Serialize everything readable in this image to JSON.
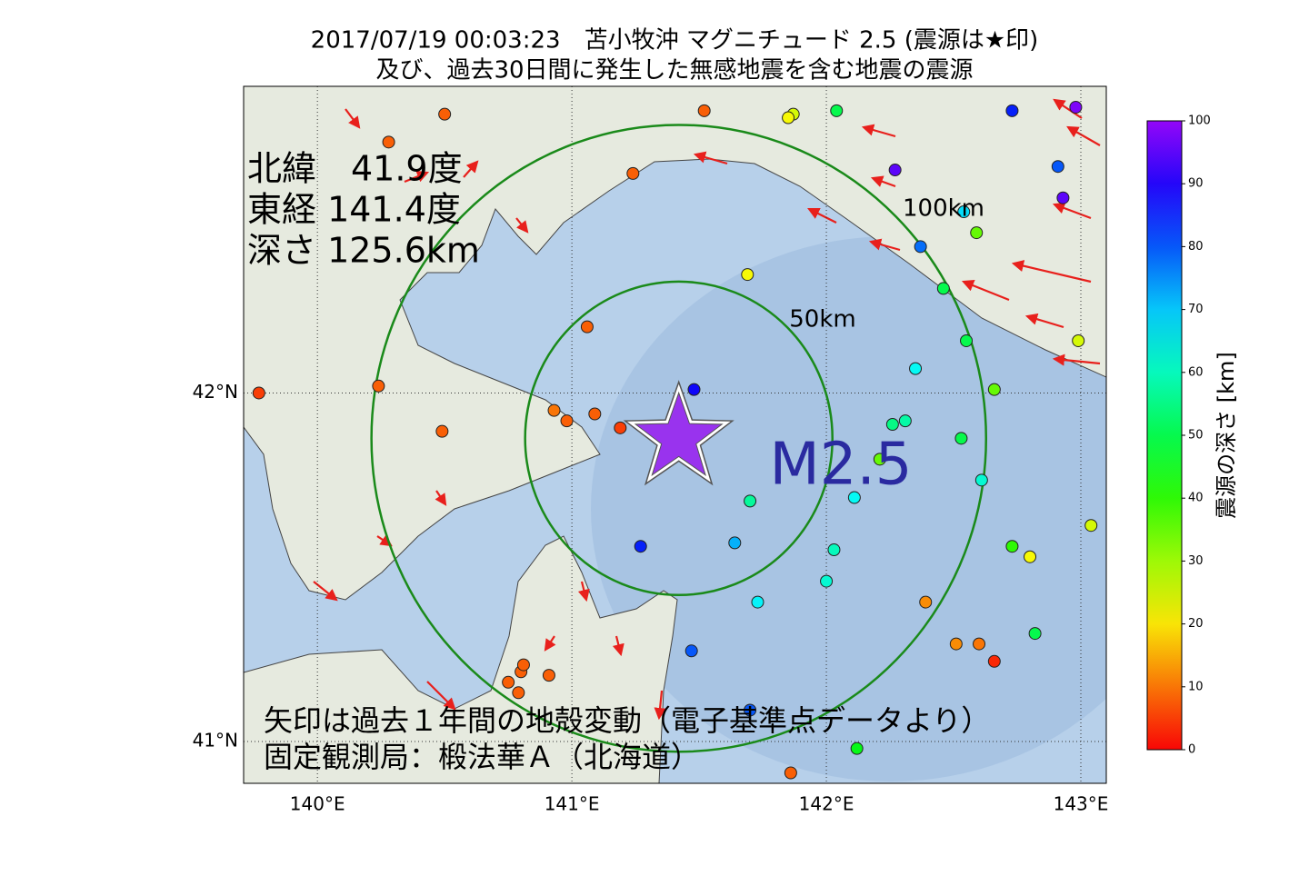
{
  "title": [
    "2017/07/19 00:03:23　苫小牧沖 マグニチュード 2.5 (震源は★印)",
    "及び、過去30日間に発生した無感地震を含む地震の震源"
  ],
  "info": [
    "北緯　41.9度",
    "東経 141.4度",
    "深さ 125.6km"
  ],
  "magnitude_label": "M2.5",
  "notes": [
    "矢印は過去１年間の地殻変動（電子基準点データより）",
    "固定観測局：椴法華Ａ（北海道）"
  ],
  "map": {
    "lonlim": [
      139.71,
      143.1
    ],
    "latlim": [
      40.88,
      42.88
    ],
    "lonticks": [
      {
        "value": 140,
        "label": "140°E"
      },
      {
        "value": 141,
        "label": "141°E"
      },
      {
        "value": 142,
        "label": "142°E"
      },
      {
        "value": 143,
        "label": "143°E"
      }
    ],
    "latticks": [
      {
        "value": 41,
        "label": "41°N"
      },
      {
        "value": 42,
        "label": "42°N"
      }
    ],
    "epicenter": {
      "lon": 141.42,
      "lat": 41.87
    },
    "rings": [
      {
        "label": "50km",
        "radius_km": 50
      },
      {
        "label": "100km",
        "radius_km": 100
      }
    ],
    "quakes": [
      {
        "lon": 141.48,
        "lat": 42.01,
        "depth": 88
      },
      {
        "lon": 141.27,
        "lat": 41.56,
        "depth": 85
      },
      {
        "lon": 141.64,
        "lat": 41.57,
        "depth": 72
      },
      {
        "lon": 141.73,
        "lat": 41.4,
        "depth": 66
      },
      {
        "lon": 141.47,
        "lat": 41.26,
        "depth": 80
      },
      {
        "lon": 141.7,
        "lat": 41.69,
        "depth": 57
      },
      {
        "lon": 141.06,
        "lat": 42.19,
        "depth": 8
      },
      {
        "lon": 141.09,
        "lat": 41.94,
        "depth": 8
      },
      {
        "lon": 140.93,
        "lat": 41.95,
        "depth": 10
      },
      {
        "lon": 140.98,
        "lat": 41.92,
        "depth": 8
      },
      {
        "lon": 141.19,
        "lat": 41.9,
        "depth": 5
      },
      {
        "lon": 141.69,
        "lat": 42.34,
        "depth": 22
      },
      {
        "lon": 142.21,
        "lat": 41.81,
        "depth": 35
      },
      {
        "lon": 142.26,
        "lat": 41.91,
        "depth": 55
      },
      {
        "lon": 142.31,
        "lat": 41.92,
        "depth": 58
      },
      {
        "lon": 142.11,
        "lat": 41.7,
        "depth": 65
      },
      {
        "lon": 142.03,
        "lat": 41.55,
        "depth": 60
      },
      {
        "lon": 142.0,
        "lat": 41.46,
        "depth": 62
      },
      {
        "lon": 142.39,
        "lat": 41.4,
        "depth": 12
      },
      {
        "lon": 142.35,
        "lat": 42.07,
        "depth": 65
      },
      {
        "lon": 142.53,
        "lat": 41.87,
        "depth": 50
      },
      {
        "lon": 142.61,
        "lat": 41.75,
        "depth": 62
      },
      {
        "lon": 142.66,
        "lat": 42.01,
        "depth": 35
      },
      {
        "lon": 142.8,
        "lat": 41.53,
        "depth": 22
      },
      {
        "lon": 142.73,
        "lat": 41.56,
        "depth": 40
      },
      {
        "lon": 142.66,
        "lat": 41.23,
        "depth": 3
      },
      {
        "lon": 142.6,
        "lat": 41.28,
        "depth": 10
      },
      {
        "lon": 142.51,
        "lat": 41.28,
        "depth": 12
      },
      {
        "lon": 142.37,
        "lat": 42.42,
        "depth": 78
      },
      {
        "lon": 142.27,
        "lat": 42.64,
        "depth": 95
      },
      {
        "lon": 142.54,
        "lat": 42.52,
        "depth": 68
      },
      {
        "lon": 142.59,
        "lat": 42.46,
        "depth": 35
      },
      {
        "lon": 142.46,
        "lat": 42.3,
        "depth": 50
      },
      {
        "lon": 142.55,
        "lat": 42.15,
        "depth": 50
      },
      {
        "lon": 142.73,
        "lat": 42.81,
        "depth": 85
      },
      {
        "lon": 142.91,
        "lat": 42.65,
        "depth": 80
      },
      {
        "lon": 142.93,
        "lat": 42.56,
        "depth": 95
      },
      {
        "lon": 142.98,
        "lat": 42.82,
        "depth": 98
      },
      {
        "lon": 141.87,
        "lat": 42.8,
        "depth": 25
      },
      {
        "lon": 141.85,
        "lat": 42.79,
        "depth": 22
      },
      {
        "lon": 142.04,
        "lat": 42.81,
        "depth": 50
      },
      {
        "lon": 141.52,
        "lat": 42.81,
        "depth": 8
      },
      {
        "lon": 141.24,
        "lat": 42.63,
        "depth": 8
      },
      {
        "lon": 140.28,
        "lat": 42.72,
        "depth": 8
      },
      {
        "lon": 140.5,
        "lat": 42.8,
        "depth": 8
      },
      {
        "lon": 140.24,
        "lat": 42.02,
        "depth": 8
      },
      {
        "lon": 140.49,
        "lat": 41.89,
        "depth": 8
      },
      {
        "lon": 140.75,
        "lat": 41.17,
        "depth": 8
      },
      {
        "lon": 140.8,
        "lat": 41.2,
        "depth": 8
      },
      {
        "lon": 140.91,
        "lat": 41.19,
        "depth": 8
      },
      {
        "lon": 140.79,
        "lat": 41.14,
        "depth": 8
      },
      {
        "lon": 140.81,
        "lat": 41.22,
        "depth": 8
      },
      {
        "lon": 141.86,
        "lat": 40.91,
        "depth": 8
      },
      {
        "lon": 141.7,
        "lat": 41.09,
        "depth": 80
      },
      {
        "lon": 142.12,
        "lat": 40.98,
        "depth": 45
      },
      {
        "lon": 142.82,
        "lat": 41.31,
        "depth": 50
      },
      {
        "lon": 143.04,
        "lat": 41.62,
        "depth": 25
      },
      {
        "lon": 139.77,
        "lat": 42.0,
        "depth": 5
      },
      {
        "lon": 142.99,
        "lat": 42.15,
        "depth": 25
      }
    ]
  },
  "colorbar": {
    "label": "震源の深さ [km]",
    "lim": [
      0,
      100
    ],
    "ticks": [
      0,
      10,
      20,
      30,
      40,
      50,
      60,
      70,
      80,
      90,
      100
    ]
  }
}
